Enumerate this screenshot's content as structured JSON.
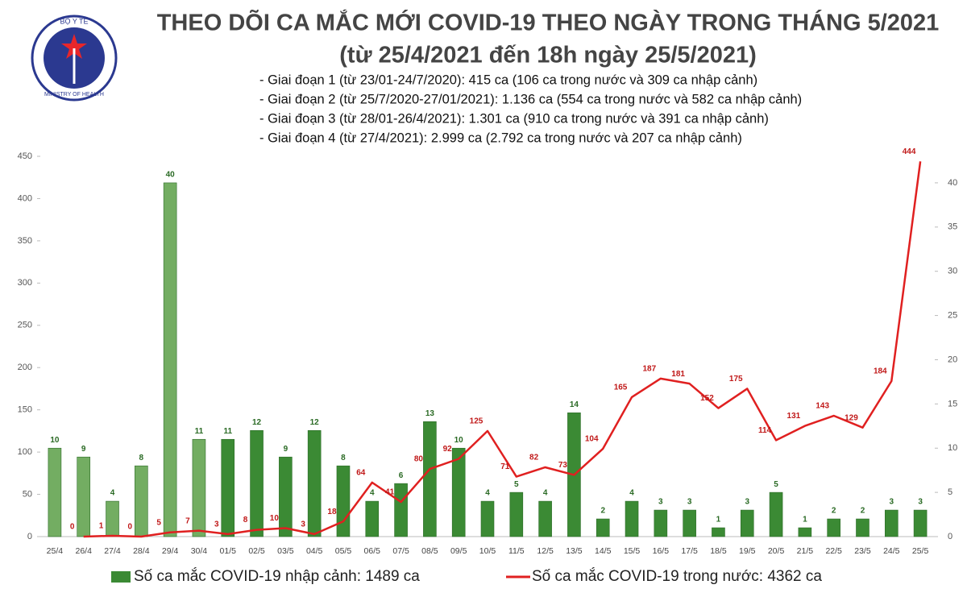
{
  "logo": {
    "top_text": "BỘ Y TẾ",
    "bottom_text": "MINISTRY OF HEALTH"
  },
  "chart_data": {
    "type": "bar_line",
    "title": "THEO DÕI CA MẮC MỚI COVID-19 THEO NGÀY TRONG THÁNG 5/2021",
    "subtitle": "(từ 25/4/2021 đến 18h ngày 25/5/2021)",
    "annotations": [
      "- Giai đoạn 1 (từ 23/01-24/7/2020): 415 ca (106 ca trong nước và 309 ca nhập cảnh)",
      "- Giai đoạn 2 (từ 25/7/2020-27/01/2021): 1.136 ca (554 ca trong nước và 582 ca nhập cảnh)",
      "- Giai đoạn 3 (từ 28/01-26/4/2021): 1.301 ca (910 ca trong nước và 391 ca nhập cảnh)",
      "- Giai đoạn 4 (từ 27/4/2021): 2.999 ca (2.792 ca trong nước và 207 ca nhập cảnh)"
    ],
    "categories": [
      "25/4",
      "26/4",
      "27/4",
      "28/4",
      "29/4",
      "30/4",
      "01/5",
      "02/5",
      "03/5",
      "04/5",
      "05/5",
      "06/5",
      "07/5",
      "08/5",
      "09/5",
      "10/5",
      "11/5",
      "12/5",
      "13/5",
      "14/5",
      "15/5",
      "16/5",
      "17/5",
      "18/5",
      "19/5",
      "20/5",
      "21/5",
      "22/5",
      "23/5",
      "24/5",
      "25/5"
    ],
    "series": [
      {
        "name": "Số ca mắc COVID-19 nhập cảnh: 1489 ca",
        "type": "bar",
        "axis": "y2",
        "color": "#3b8a34",
        "colors": [
          "#73ad62",
          "#73ad62",
          "#73ad62",
          "#73ad62",
          "#73ad62",
          "#73ad62",
          "#3b8a34",
          "#3b8a34",
          "#3b8a34",
          "#3b8a34",
          "#3b8a34",
          "#3b8a34",
          "#3b8a34",
          "#3b8a34",
          "#3b8a34",
          "#3b8a34",
          "#3b8a34",
          "#3b8a34",
          "#3b8a34",
          "#3b8a34",
          "#3b8a34",
          "#3b8a34",
          "#3b8a34",
          "#3b8a34",
          "#3b8a34",
          "#3b8a34",
          "#3b8a34",
          "#3b8a34",
          "#3b8a34",
          "#3b8a34",
          "#3b8a34"
        ],
        "values": [
          10,
          9,
          4,
          8,
          40,
          11,
          11,
          12,
          9,
          12,
          8,
          4,
          6,
          13,
          10,
          4,
          5,
          4,
          14,
          2,
          4,
          3,
          3,
          1,
          3,
          5,
          1,
          2,
          2,
          3,
          3
        ]
      },
      {
        "name": "Số ca mắc COVID-19 trong nước: 4362 ca",
        "type": "line",
        "color": "#e02020",
        "values": [
          null,
          0,
          1,
          0,
          5,
          7,
          3,
          8,
          10,
          3,
          18,
          64,
          41,
          80,
          92,
          125,
          71,
          82,
          73,
          104,
          165,
          187,
          181,
          152,
          175,
          114,
          131,
          143,
          129,
          184,
          444
        ]
      }
    ],
    "ylim": [
      0,
      450
    ],
    "yticks": [
      0,
      50,
      100,
      150,
      200,
      250,
      300,
      350,
      400,
      450
    ],
    "y2lim": [
      0,
      43
    ],
    "y2ticks": [
      0,
      5,
      10,
      15,
      20,
      25,
      30,
      35,
      40
    ],
    "legend": "bottom"
  }
}
